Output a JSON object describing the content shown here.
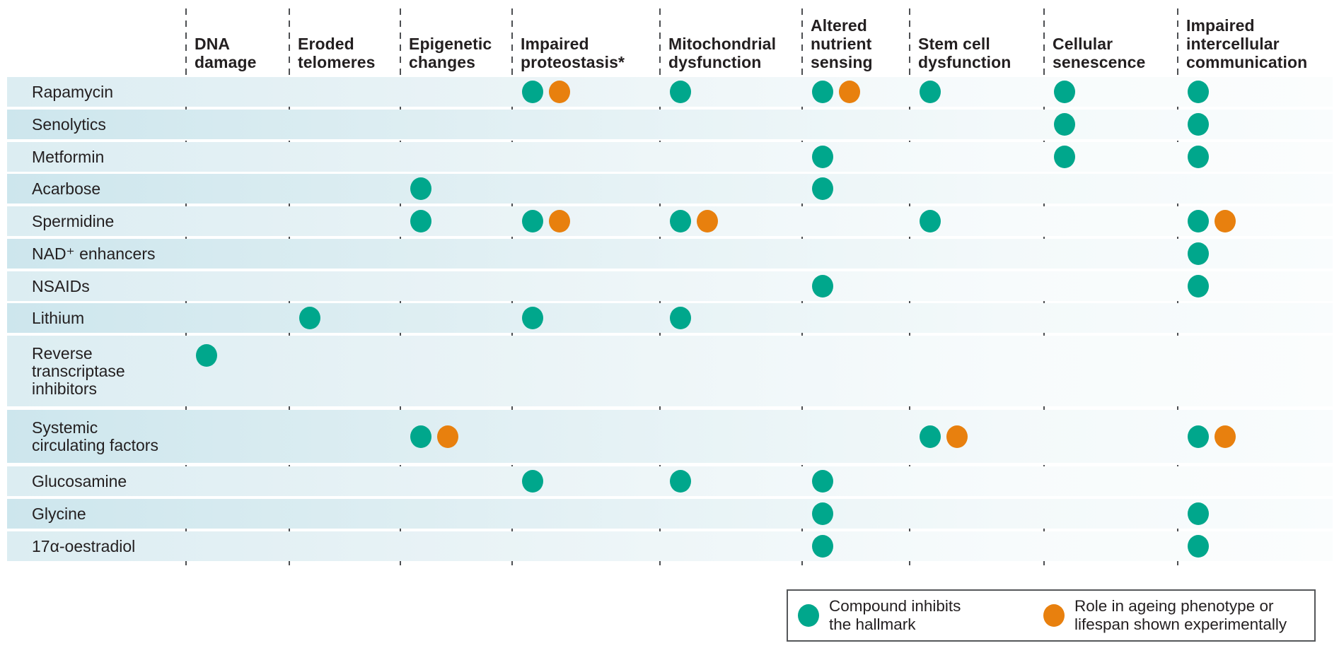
{
  "figure": {
    "legend": {
      "inhibits": {
        "label": "Compound inhibits\nthe hallmark",
        "color": "#00A78C"
      },
      "experimental": {
        "label": "Role in ageing phenotype or\nlifespan shown experimentally",
        "color": "#E8800E"
      }
    }
  },
  "chart_data": {
    "type": "table",
    "title": "",
    "columns": [
      "DNA damage",
      "Eroded telomeres",
      "Epigenetic changes",
      "Impaired proteostasis*",
      "Mitochondrial dysfunction",
      "Altered nutrient sensing",
      "Stem cell dysfunction",
      "Cellular senescence",
      "Impaired intercellular communication"
    ],
    "rows": [
      "Rapamycin",
      "Senolytics",
      "Metformin",
      "Acarbose",
      "Spermidine",
      "NAD⁺ enhancers",
      "NSAIDs",
      "Lithium",
      "Reverse\ntranscriptase\ninhibitors",
      "Systemic\ncirculating factors",
      "Glucosamine",
      "Glycine",
      "17α-oestradiol"
    ],
    "mark_types": {
      "inhibits": "Compound inhibits the hallmark",
      "experimental": "Role in ageing phenotype or lifespan shown experimentally"
    },
    "marks": [
      {
        "row": 0,
        "cells": {
          "3": [
            "inhibits",
            "experimental"
          ],
          "4": [
            "inhibits"
          ],
          "5": [
            "inhibits",
            "experimental"
          ],
          "6": [
            "inhibits"
          ],
          "7": [
            "inhibits"
          ],
          "8": [
            "inhibits"
          ]
        }
      },
      {
        "row": 1,
        "cells": {
          "7": [
            "inhibits"
          ],
          "8": [
            "inhibits"
          ]
        }
      },
      {
        "row": 2,
        "cells": {
          "5": [
            "inhibits"
          ],
          "7": [
            "inhibits"
          ],
          "8": [
            "inhibits"
          ]
        }
      },
      {
        "row": 3,
        "cells": {
          "2": [
            "inhibits"
          ],
          "5": [
            "inhibits"
          ]
        }
      },
      {
        "row": 4,
        "cells": {
          "2": [
            "inhibits"
          ],
          "3": [
            "inhibits",
            "experimental"
          ],
          "4": [
            "inhibits",
            "experimental"
          ],
          "6": [
            "inhibits"
          ],
          "8": [
            "inhibits",
            "experimental"
          ]
        }
      },
      {
        "row": 5,
        "cells": {
          "8": [
            "inhibits"
          ]
        }
      },
      {
        "row": 6,
        "cells": {
          "5": [
            "inhibits"
          ],
          "8": [
            "inhibits"
          ]
        }
      },
      {
        "row": 7,
        "cells": {
          "1": [
            "inhibits"
          ],
          "3": [
            "inhibits"
          ],
          "4": [
            "inhibits"
          ]
        }
      },
      {
        "row": 8,
        "cells": {
          "0": [
            "inhibits"
          ]
        }
      },
      {
        "row": 9,
        "cells": {
          "2": [
            "inhibits",
            "experimental"
          ],
          "6": [
            "inhibits",
            "experimental"
          ],
          "8": [
            "inhibits",
            "experimental"
          ]
        }
      },
      {
        "row": 10,
        "cells": {
          "3": [
            "inhibits"
          ],
          "4": [
            "inhibits"
          ],
          "5": [
            "inhibits"
          ]
        }
      },
      {
        "row": 11,
        "cells": {
          "5": [
            "inhibits"
          ],
          "8": [
            "inhibits"
          ]
        }
      },
      {
        "row": 12,
        "cells": {
          "5": [
            "inhibits"
          ],
          "8": [
            "inhibits"
          ]
        }
      }
    ],
    "legend_position": "bottom-right",
    "grid": "dashed-column-separators"
  }
}
